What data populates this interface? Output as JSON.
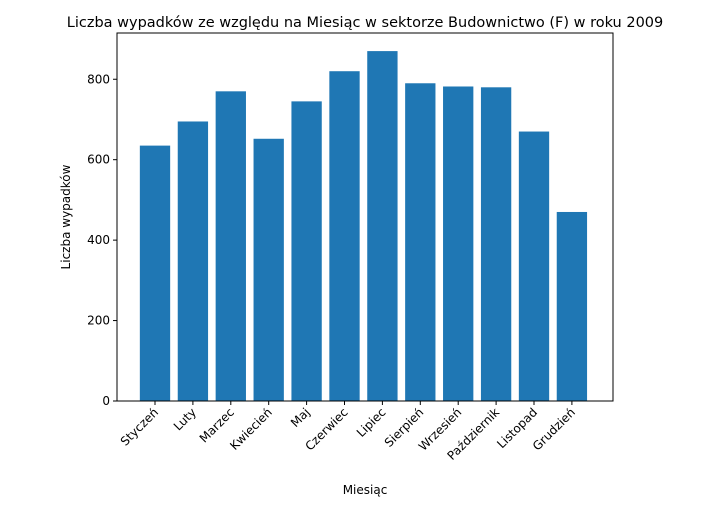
{
  "chart_data": {
    "type": "bar",
    "title": "Liczba wypadków ze względu na Miesiąc w sektorze Budownictwo  (F)    w roku 2009",
    "xlabel": "Miesiąc",
    "ylabel": "Liczba wypadków",
    "categories": [
      "Styczeń",
      "Luty",
      "Marzec",
      "Kwiecień",
      "Maj",
      "Czerwiec",
      "Lipiec",
      "Sierpień",
      "Wrzesień",
      "Październik",
      "Listopad",
      "Grudzień"
    ],
    "values": [
      635,
      695,
      770,
      652,
      745,
      820,
      870,
      790,
      782,
      780,
      670,
      470
    ],
    "ylim": [
      0,
      915
    ],
    "yticks": [
      0,
      200,
      400,
      600,
      800
    ],
    "bar_color": "#1f77b4",
    "grid": false,
    "legend": "none"
  }
}
